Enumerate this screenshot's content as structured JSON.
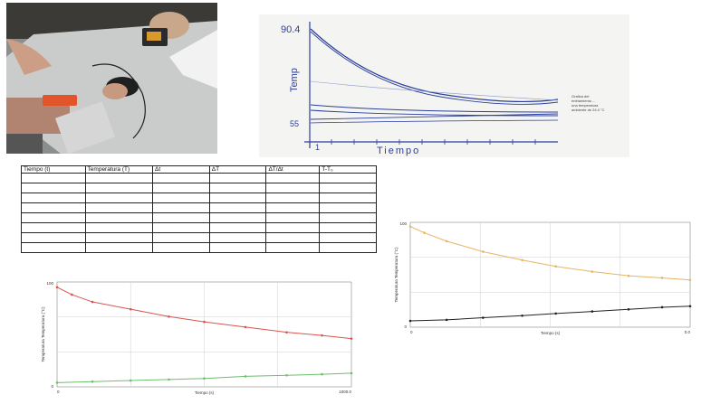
{
  "sketch": {
    "y_top_label": "90.4",
    "y_bottom_label": "55",
    "x_origin_label": "1",
    "ylabel": "Temp",
    "xlabel": "Tiempo",
    "note_lines": [
      "Grafica del",
      "enfriamiento ...",
      "una temperatura",
      "ambiente de 24.0 °C"
    ]
  },
  "table": {
    "headers": [
      "Tiempo (t)",
      "Temperatura (T)",
      "Δt",
      "ΔT",
      "ΔT/Δt",
      "T-T₀"
    ],
    "empty_rows": 8
  },
  "chart_data": [
    {
      "type": "line",
      "ylabel": "Temperatura Temperatura (°C)",
      "xlabel": "Tiempo (s)",
      "ytick_labels": [
        "100",
        "0"
      ],
      "xtick_labels": [
        "0",
        "1000.0"
      ],
      "xlim": [
        0,
        1000
      ],
      "ylim": [
        0,
        100
      ],
      "grid": true,
      "series": [
        {
          "color": "#d9534f",
          "x": [
            0,
            50,
            120,
            250,
            380,
            500,
            640,
            780,
            900,
            1000
          ],
          "y": [
            95,
            88,
            81,
            74,
            67,
            62,
            57,
            52,
            49,
            46
          ]
        },
        {
          "color": "#6cbf6c",
          "x": [
            0,
            120,
            250,
            380,
            500,
            640,
            780,
            900,
            1000
          ],
          "y": [
            4,
            5,
            6,
            7,
            8,
            10,
            11,
            12,
            13
          ]
        }
      ]
    },
    {
      "type": "line",
      "ylabel": "Temperatura Temperatura (°C)",
      "xlabel": "Tiempo (s)",
      "ytick_labels": [
        "100",
        "0"
      ],
      "xtick_labels": [
        "0",
        "0.0"
      ],
      "xlim": [
        0,
        1000
      ],
      "ylim": [
        0,
        100
      ],
      "grid": true,
      "series": [
        {
          "color": "#e8b466",
          "x": [
            0,
            50,
            130,
            260,
            400,
            520,
            650,
            780,
            900,
            1000
          ],
          "y": [
            96,
            90,
            82,
            72,
            64,
            58,
            53,
            49,
            47,
            45
          ]
        },
        {
          "color": "#222222",
          "x": [
            0,
            130,
            260,
            400,
            520,
            650,
            780,
            900,
            1000
          ],
          "y": [
            6,
            7,
            9,
            11,
            13,
            15,
            17,
            19,
            20
          ]
        }
      ]
    }
  ]
}
